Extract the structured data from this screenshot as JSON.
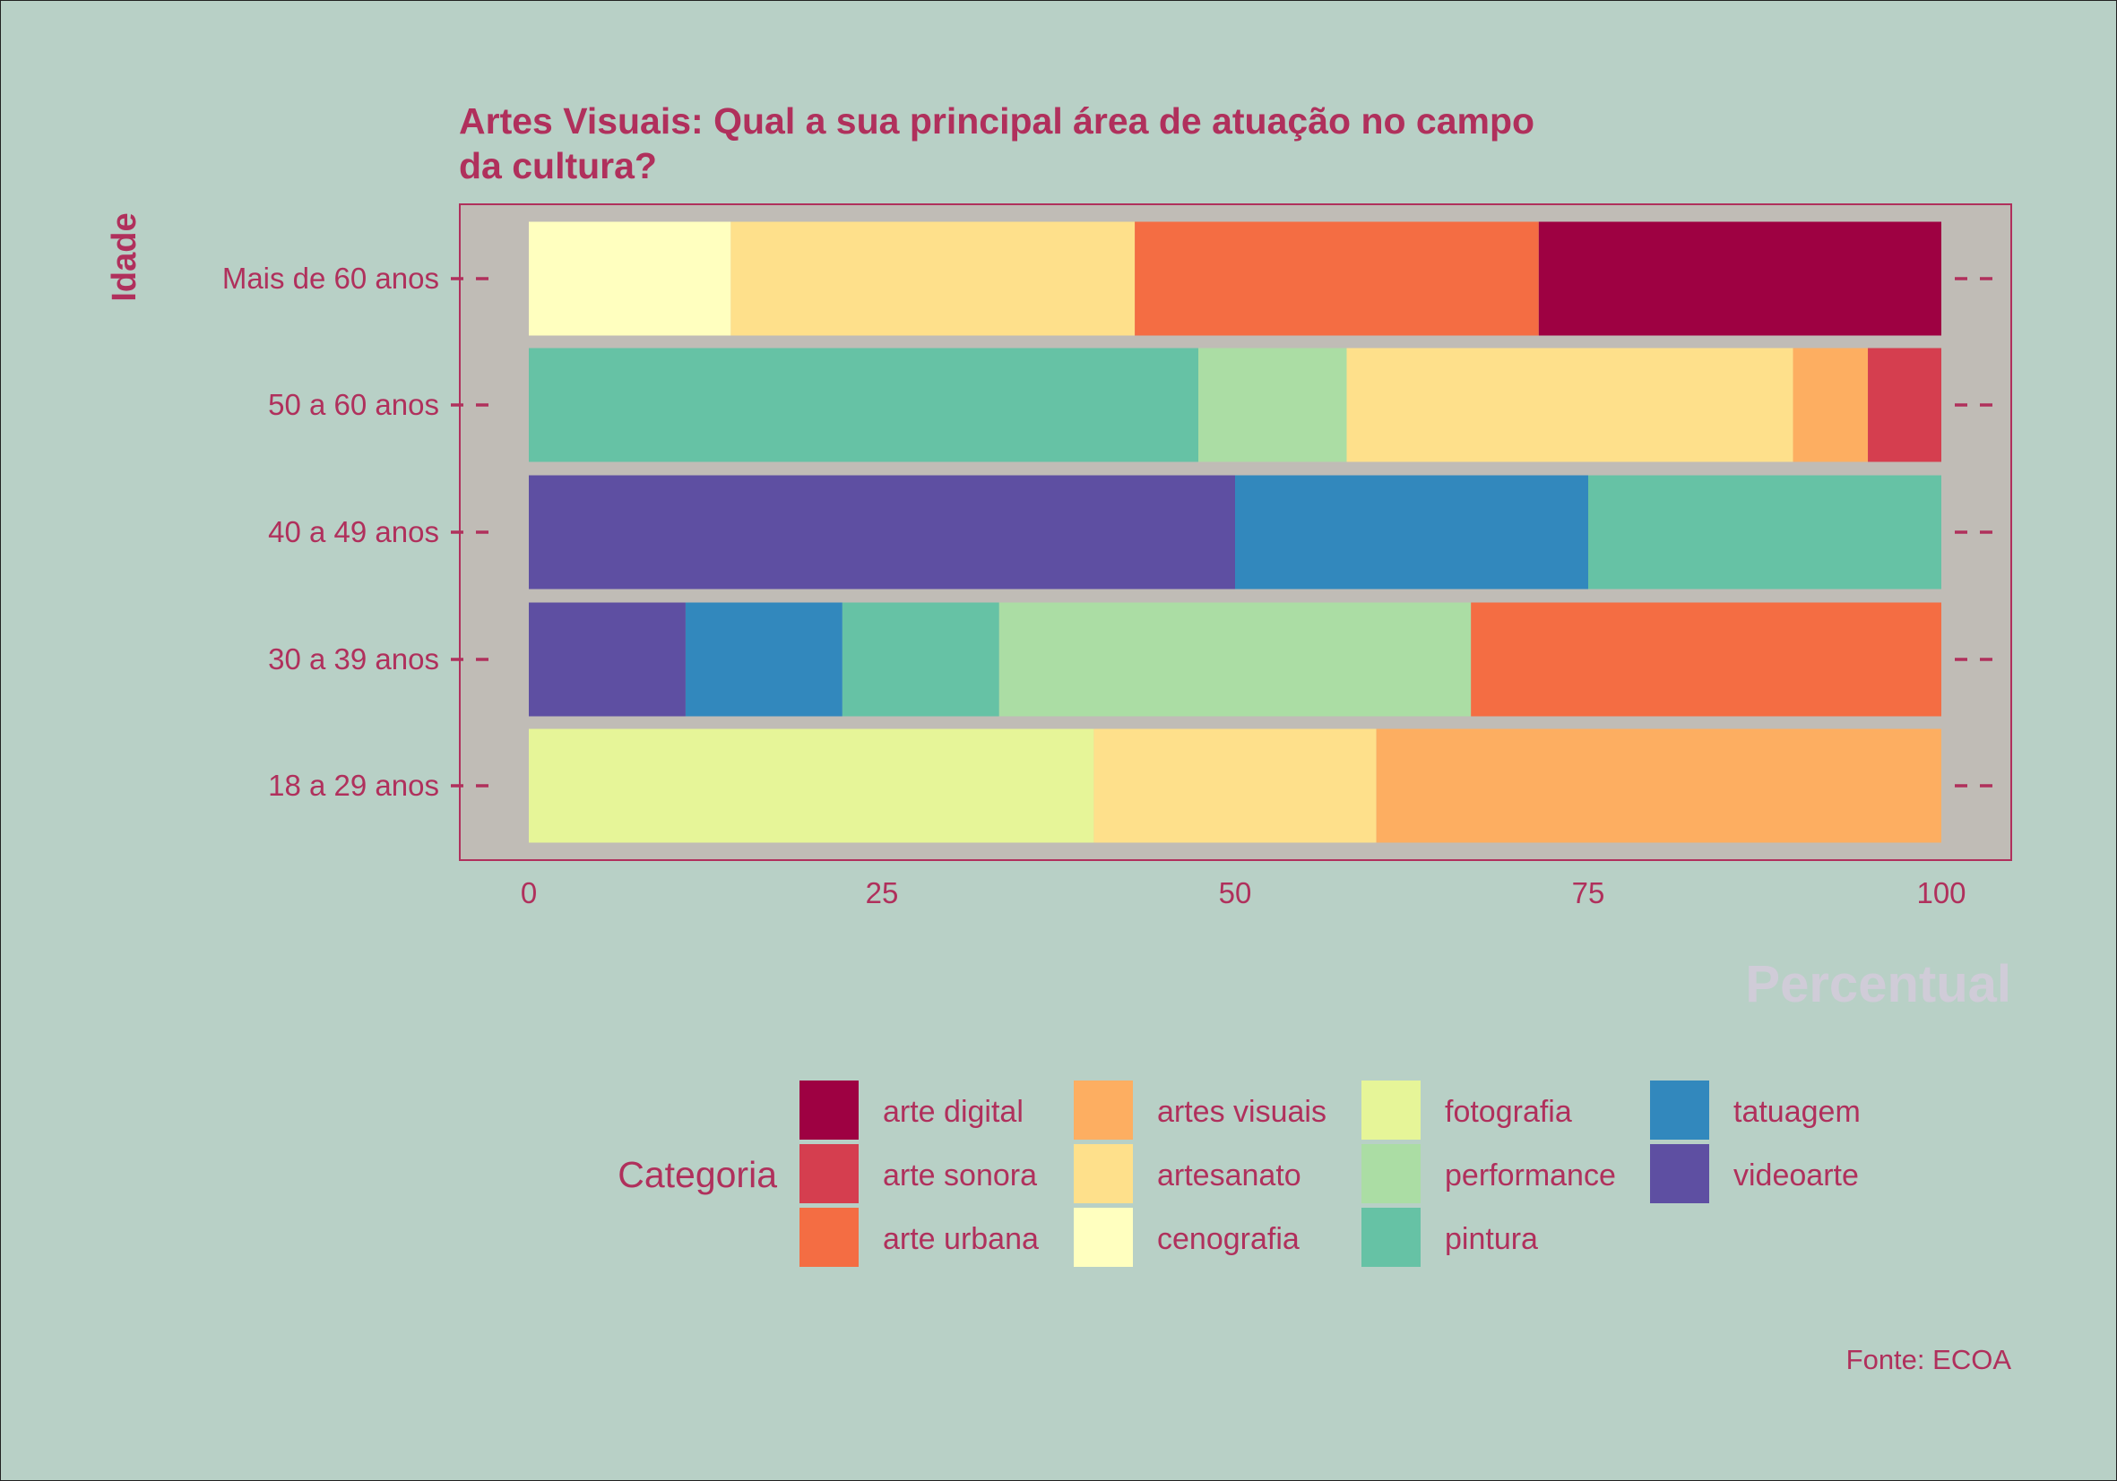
{
  "chart_data": {
    "type": "bar",
    "orientation": "horizontal",
    "stacked": true,
    "title": "Artes Visuais: Qual a sua principal área de atuação no campo da cultura?",
    "title_lines": [
      "Artes Visuais: Qual a sua principal área de atuação no campo",
      "da cultura?"
    ],
    "xlabel": "Percentual",
    "ylabel": "Idade",
    "xlim": [
      0,
      100
    ],
    "x_ticks": [
      0,
      25,
      50,
      75,
      100
    ],
    "caption": "Fonte: ECOA",
    "legend_title": "Categoria",
    "legend_position": "bottom",
    "categories": [
      "Mais de 60 anos",
      "50 a 60 anos",
      "40 a 49 anos",
      "30 a 39 anos",
      "18 a 29 anos"
    ],
    "legend": [
      {
        "name": "arte digital",
        "color": "#9e0142"
      },
      {
        "name": "arte sonora",
        "color": "#d53e4f"
      },
      {
        "name": "arte urbana",
        "color": "#f46d43"
      },
      {
        "name": "artes visuais",
        "color": "#fdae61"
      },
      {
        "name": "artesanato",
        "color": "#fee08b"
      },
      {
        "name": "cenografia",
        "color": "#ffffbf"
      },
      {
        "name": "fotografia",
        "color": "#e6f598"
      },
      {
        "name": "performance",
        "color": "#abdda4"
      },
      {
        "name": "pintura",
        "color": "#66c2a5"
      },
      {
        "name": "tatuagem",
        "color": "#3288bd"
      },
      {
        "name": "videoarte",
        "color": "#5e4fa2"
      }
    ],
    "bars": [
      {
        "category": "Mais de 60 anos",
        "segments": [
          {
            "series": "cenografia",
            "value": 14.3
          },
          {
            "series": "artesanato",
            "value": 28.6
          },
          {
            "series": "arte urbana",
            "value": 28.6
          },
          {
            "series": "arte digital",
            "value": 28.5
          }
        ]
      },
      {
        "category": "50 a 60 anos",
        "segments": [
          {
            "series": "pintura",
            "value": 47.4
          },
          {
            "series": "performance",
            "value": 10.5
          },
          {
            "series": "artesanato",
            "value": 31.6
          },
          {
            "series": "artes visuais",
            "value": 5.3
          },
          {
            "series": "arte sonora",
            "value": 5.2
          }
        ]
      },
      {
        "category": "40 a 49 anos",
        "segments": [
          {
            "series": "videoarte",
            "value": 50
          },
          {
            "series": "tatuagem",
            "value": 25
          },
          {
            "series": "pintura",
            "value": 25
          }
        ]
      },
      {
        "category": "30 a 39 anos",
        "segments": [
          {
            "series": "videoarte",
            "value": 11.1
          },
          {
            "series": "tatuagem",
            "value": 11.1
          },
          {
            "series": "pintura",
            "value": 11.1
          },
          {
            "series": "performance",
            "value": 33.4
          },
          {
            "series": "arte urbana",
            "value": 33.3
          }
        ]
      },
      {
        "category": "18 a 29 anos",
        "segments": [
          {
            "series": "fotografia",
            "value": 40
          },
          {
            "series": "artesanato",
            "value": 20
          },
          {
            "series": "artes visuais",
            "value": 40
          }
        ]
      }
    ],
    "colors": {
      "background": "#b8d0c6",
      "panel": "#c0bcb6",
      "text": "#b0305c",
      "xlabel": "#d0ccd8"
    }
  }
}
